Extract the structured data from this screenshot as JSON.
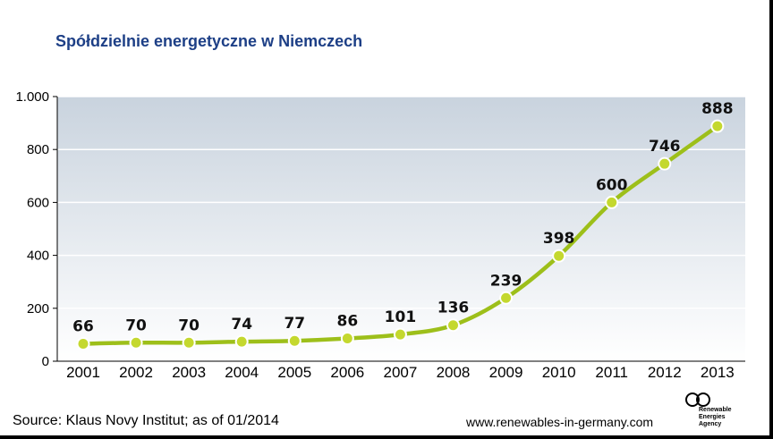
{
  "title": "Spółdzielnie energetyczne w Niemczech",
  "source": "Source: Klaus Novy Institut; as of 01/2014",
  "url": "www.renewables-in-germany.com",
  "logo": {
    "line1": "Renewable",
    "line2": "Energies",
    "line3": "Agency",
    "icon": "infinity-logo-icon"
  },
  "colors": {
    "line": "#9dbf1a",
    "marker": "#c4d82e",
    "plot_top": "#c9d3de",
    "plot_bottom": "#ffffff",
    "title": "#1d3f86"
  },
  "chart_data": {
    "type": "line",
    "title": "Spółdzielnie energetyczne w Niemczech",
    "xlabel": "",
    "ylabel": "",
    "categories": [
      "2001",
      "2002",
      "2003",
      "2004",
      "2005",
      "2006",
      "2007",
      "2008",
      "2009",
      "2010",
      "2011",
      "2012",
      "2013"
    ],
    "values": [
      66,
      70,
      70,
      74,
      77,
      86,
      101,
      136,
      239,
      398,
      600,
      746,
      888
    ],
    "data_labels": [
      "66",
      "70",
      "70",
      "74",
      "77",
      "86",
      "101",
      "136",
      "239",
      "398",
      "600",
      "746",
      "888"
    ],
    "ylim": [
      0,
      1000
    ],
    "yticks": [
      0,
      200,
      400,
      600,
      800,
      1000
    ],
    "ytick_labels": [
      "0",
      "200",
      "400",
      "600",
      "800",
      "1.000"
    ],
    "grid": true
  }
}
